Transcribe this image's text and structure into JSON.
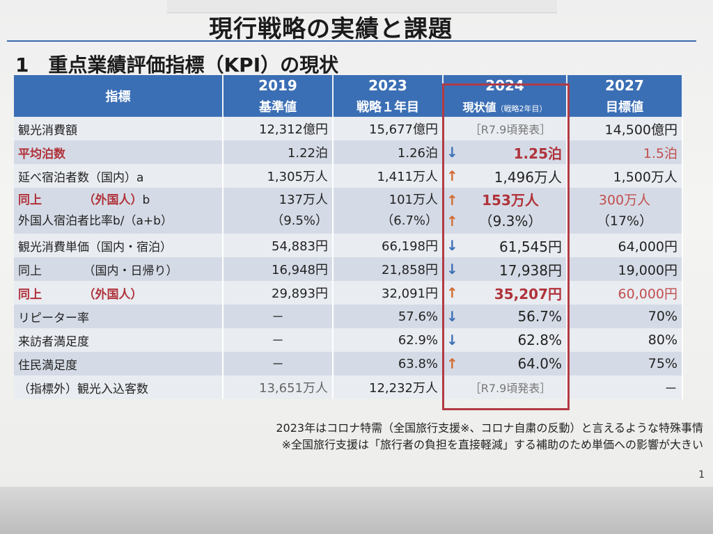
{
  "page": {
    "title": "現行戦略の実績と課題",
    "section": "1　重点業績評価指標（KPI）の現状",
    "page_number": "1"
  },
  "table": {
    "header": {
      "indicator": "指標",
      "y2019": "2019",
      "y2019_sub": "基準値",
      "y2023": "2023",
      "y2023_sub": "戦略１年目",
      "y2024": "2024",
      "y2024_sub": "現状値",
      "y2024_sub_note": "（戦略2年目）",
      "y2027": "2027",
      "y2027_sub": "目標値"
    },
    "rows": {
      "r1": {
        "label": "観光消費額",
        "v2019": "12,312億円",
        "v2023": "15,677億円",
        "v2024": "［R7.9頃発表］",
        "v2027": "14,500億円"
      },
      "r2": {
        "label": "平均泊数",
        "v2019": "1.22泊",
        "v2023": "1.26泊",
        "trend": "↓",
        "v2024": "1.25泊",
        "v2027": "1.5泊"
      },
      "r3": {
        "label": "延べ宿泊者数（国内）a",
        "v2019": "1,305万人",
        "v2023": "1,411万人",
        "trend": "↑",
        "v2024": "1,496万人",
        "v2027": "1,500万人"
      },
      "r4": {
        "label_a": "同上",
        "label_a2": "（外国人）",
        "label_a3": "b",
        "label_b": "外国人宿泊者比率b/（a+b）",
        "v2019_a": "137万人",
        "v2019_b": "（9.5%）",
        "v2023_a": "101万人",
        "v2023_b": "（6.7%）",
        "trend_a": "↑",
        "trend_b": "↑",
        "v2024_a": "153万人",
        "v2024_b": "（9.3%）",
        "v2027_a": "300万人",
        "v2027_b": "（17%）"
      },
      "r5": {
        "label": "観光消費単価（国内・宿泊）",
        "v2019": "54,883円",
        "v2023": "66,198円",
        "trend": "↓",
        "v2024": "61,545円",
        "v2027": "64,000円"
      },
      "r6": {
        "label_a": "同上",
        "label_b": "（国内・日帰り）",
        "v2019": "16,948円",
        "v2023": "21,858円",
        "trend": "↓",
        "v2024": "17,938円",
        "v2027": "19,000円"
      },
      "r7": {
        "label_a": "同上",
        "label_b": "（外国人）",
        "v2019": "29,893円",
        "v2023": "32,091円",
        "trend": "↑",
        "v2024": "35,207円",
        "v2027": "60,000円"
      },
      "r8": {
        "label": "リピーター率",
        "v2019": "－",
        "v2023": "57.6%",
        "trend": "↓",
        "v2024": "56.7%",
        "v2027": "70%"
      },
      "r9": {
        "label": "来訪者満足度",
        "v2019": "－",
        "v2023": "62.9%",
        "trend": "↓",
        "v2024": "62.8%",
        "v2027": "80%"
      },
      "r10": {
        "label": "住民満足度",
        "v2019": "－",
        "v2023": "63.8%",
        "trend": "↑",
        "v2024": "64.0%",
        "v2027": "75%"
      },
      "r11": {
        "label": "（指標外）観光入込客数",
        "v2019": "13,651万人",
        "v2023": "12,232万人",
        "v2024": "［R7.9頃発表］",
        "v2027": "－"
      }
    }
  },
  "notes": {
    "line1": "2023年はコロナ特需（全国旅行支援※、コロナ自粛の反動）と言えるような特殊事情",
    "line2": "※全国旅行支援は「旅行者の負担を直接軽減」する補助のため単価への影響が大きい"
  },
  "colors": {
    "header_blue": "#3b6fb5",
    "highlight_red": "#b23a44",
    "up_arrow": "#d36a2f",
    "down_arrow": "#3b6fb5"
  }
}
